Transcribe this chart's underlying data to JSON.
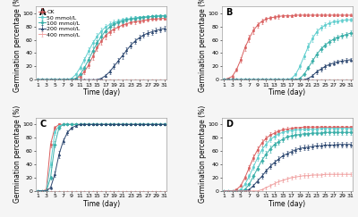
{
  "subplots": [
    "A",
    "B",
    "C",
    "D"
  ],
  "legend_labels": [
    "CK",
    "50 mmol/L",
    "100 mmol/L",
    "200 mmol/L",
    "400 mmol/L"
  ],
  "colors": [
    "#d95f5f",
    "#60cece",
    "#3aafa9",
    "#2c4770",
    "#f0a0a0"
  ],
  "markers": [
    "s",
    "o",
    "D",
    "^",
    "+"
  ],
  "xlabel": "Time (day)",
  "ylabel": "Germination percentage (%)",
  "days": [
    1,
    2,
    3,
    4,
    5,
    6,
    7,
    8,
    9,
    10,
    11,
    12,
    13,
    14,
    15,
    16,
    17,
    18,
    19,
    20,
    21,
    22,
    23,
    24,
    25,
    26,
    27,
    28,
    29,
    30,
    31
  ],
  "A": {
    "CK": [
      0,
      0,
      0,
      0,
      0,
      0,
      0,
      0,
      0,
      2,
      5,
      12,
      22,
      35,
      48,
      58,
      66,
      72,
      76,
      79,
      82,
      84,
      86,
      87,
      88,
      89,
      90,
      91,
      91,
      92,
      92
    ],
    "50": [
      0,
      0,
      0,
      0,
      0,
      0,
      0,
      0,
      2,
      8,
      18,
      30,
      43,
      55,
      65,
      73,
      79,
      83,
      86,
      88,
      90,
      91,
      92,
      93,
      94,
      94,
      95,
      95,
      96,
      96,
      96
    ],
    "100": [
      0,
      0,
      0,
      0,
      0,
      0,
      0,
      0,
      0,
      2,
      8,
      18,
      30,
      43,
      55,
      65,
      73,
      79,
      83,
      86,
      88,
      90,
      91,
      92,
      93,
      94,
      94,
      95,
      95,
      96,
      96
    ],
    "200": [
      0,
      0,
      0,
      0,
      0,
      0,
      0,
      0,
      0,
      0,
      0,
      0,
      0,
      0,
      0,
      2,
      6,
      12,
      20,
      28,
      36,
      44,
      52,
      58,
      63,
      67,
      70,
      72,
      74,
      76,
      77
    ],
    "400": [
      0,
      0,
      0,
      0,
      0,
      0,
      0,
      0,
      0,
      0,
      0,
      0,
      0,
      0,
      0,
      0,
      0,
      0,
      0,
      0,
      0,
      0,
      0,
      0,
      0,
      0,
      0,
      0,
      0,
      0,
      0
    ],
    "CK_err": [
      0,
      0,
      0,
      0,
      0,
      0,
      0,
      0,
      0,
      1,
      2,
      3,
      4,
      5,
      5,
      5,
      5,
      4,
      4,
      4,
      3,
      3,
      3,
      3,
      3,
      3,
      3,
      2,
      2,
      2,
      2
    ],
    "50_err": [
      0,
      0,
      0,
      0,
      0,
      0,
      0,
      0,
      1,
      2,
      3,
      4,
      5,
      5,
      5,
      5,
      4,
      4,
      4,
      3,
      3,
      3,
      3,
      3,
      2,
      2,
      2,
      2,
      2,
      2,
      2
    ],
    "100_err": [
      0,
      0,
      0,
      0,
      0,
      0,
      0,
      0,
      0,
      1,
      2,
      3,
      4,
      5,
      5,
      5,
      5,
      4,
      4,
      4,
      3,
      3,
      3,
      3,
      3,
      2,
      2,
      2,
      2,
      2,
      2
    ],
    "200_err": [
      0,
      0,
      0,
      0,
      0,
      0,
      0,
      0,
      0,
      0,
      0,
      0,
      0,
      0,
      0,
      1,
      2,
      3,
      4,
      4,
      5,
      5,
      5,
      4,
      4,
      4,
      4,
      4,
      4,
      4,
      4
    ],
    "400_err": [
      0,
      0,
      0,
      0,
      0,
      0,
      0,
      0,
      0,
      0,
      0,
      0,
      0,
      0,
      0,
      0,
      0,
      0,
      0,
      0,
      0,
      0,
      0,
      0,
      0,
      0,
      0,
      0,
      0,
      0,
      0
    ]
  },
  "B": {
    "CK": [
      0,
      2,
      5,
      15,
      30,
      48,
      62,
      74,
      82,
      88,
      91,
      93,
      94,
      95,
      96,
      96,
      96,
      97,
      97,
      97,
      97,
      97,
      97,
      97,
      97,
      97,
      97,
      97,
      97,
      97,
      97
    ],
    "50": [
      0,
      0,
      0,
      0,
      0,
      0,
      0,
      0,
      0,
      0,
      0,
      0,
      0,
      0,
      0,
      0,
      2,
      8,
      20,
      35,
      50,
      62,
      72,
      78,
      82,
      85,
      87,
      88,
      89,
      90,
      90
    ],
    "100": [
      0,
      0,
      0,
      0,
      0,
      0,
      0,
      0,
      0,
      0,
      0,
      0,
      0,
      0,
      0,
      0,
      0,
      0,
      2,
      8,
      18,
      28,
      38,
      46,
      52,
      57,
      61,
      64,
      66,
      68,
      70
    ],
    "200": [
      0,
      0,
      0,
      0,
      0,
      0,
      0,
      0,
      0,
      0,
      0,
      0,
      0,
      0,
      0,
      0,
      0,
      0,
      0,
      0,
      2,
      6,
      12,
      16,
      20,
      23,
      25,
      27,
      28,
      29,
      30
    ],
    "400": [
      0,
      0,
      0,
      0,
      0,
      0,
      0,
      0,
      0,
      0,
      0,
      0,
      0,
      0,
      0,
      0,
      0,
      0,
      0,
      0,
      0,
      0,
      0,
      0,
      0,
      0,
      0,
      0,
      0,
      0,
      0
    ],
    "CK_err": [
      0,
      1,
      2,
      3,
      4,
      5,
      5,
      5,
      4,
      4,
      3,
      3,
      3,
      3,
      2,
      2,
      2,
      2,
      2,
      2,
      2,
      2,
      2,
      2,
      2,
      2,
      2,
      2,
      2,
      2,
      2
    ],
    "50_err": [
      0,
      0,
      0,
      0,
      0,
      0,
      0,
      0,
      0,
      0,
      0,
      0,
      0,
      0,
      0,
      0,
      1,
      2,
      3,
      4,
      5,
      5,
      5,
      4,
      4,
      4,
      3,
      3,
      3,
      3,
      3
    ],
    "100_err": [
      0,
      0,
      0,
      0,
      0,
      0,
      0,
      0,
      0,
      0,
      0,
      0,
      0,
      0,
      0,
      0,
      0,
      0,
      1,
      2,
      3,
      4,
      4,
      4,
      4,
      4,
      4,
      4,
      4,
      4,
      4
    ],
    "200_err": [
      0,
      0,
      0,
      0,
      0,
      0,
      0,
      0,
      0,
      0,
      0,
      0,
      0,
      0,
      0,
      0,
      0,
      0,
      0,
      0,
      1,
      2,
      3,
      3,
      3,
      3,
      3,
      3,
      3,
      3,
      3
    ],
    "400_err": [
      0,
      0,
      0,
      0,
      0,
      0,
      0,
      0,
      0,
      0,
      0,
      0,
      0,
      0,
      0,
      0,
      0,
      0,
      0,
      0,
      0,
      0,
      0,
      0,
      0,
      0,
      0,
      0,
      0,
      0,
      0
    ]
  },
  "C": {
    "CK": [
      0,
      0,
      2,
      70,
      95,
      100,
      100,
      100,
      100,
      100,
      100,
      100,
      100,
      100,
      100,
      100,
      100,
      100,
      100,
      100,
      100,
      100,
      100,
      100,
      100,
      100,
      100,
      100,
      100,
      100,
      100
    ],
    "50": [
      0,
      0,
      0,
      40,
      88,
      98,
      100,
      100,
      100,
      100,
      100,
      100,
      100,
      100,
      100,
      100,
      100,
      100,
      100,
      100,
      100,
      100,
      100,
      100,
      100,
      100,
      100,
      100,
      100,
      100,
      100
    ],
    "100": [
      0,
      0,
      0,
      20,
      70,
      95,
      100,
      100,
      100,
      100,
      100,
      100,
      100,
      100,
      100,
      100,
      100,
      100,
      100,
      100,
      100,
      100,
      100,
      100,
      100,
      100,
      100,
      100,
      100,
      100,
      100
    ],
    "200": [
      0,
      0,
      0,
      5,
      25,
      55,
      75,
      88,
      95,
      98,
      100,
      100,
      100,
      100,
      100,
      100,
      100,
      100,
      100,
      100,
      100,
      100,
      100,
      100,
      100,
      100,
      100,
      100,
      100,
      100,
      100
    ],
    "400": [
      0,
      0,
      0,
      0,
      0,
      0,
      0,
      0,
      0,
      0,
      0,
      0,
      0,
      0,
      0,
      0,
      0,
      0,
      0,
      0,
      0,
      0,
      0,
      0,
      0,
      0,
      0,
      0,
      0,
      0,
      0
    ],
    "CK_err": [
      0,
      0,
      2,
      5,
      3,
      2,
      1,
      0,
      0,
      0,
      0,
      0,
      0,
      0,
      0,
      0,
      0,
      0,
      0,
      0,
      0,
      0,
      0,
      0,
      0,
      0,
      0,
      0,
      0,
      0,
      0
    ],
    "50_err": [
      0,
      0,
      0,
      4,
      4,
      2,
      1,
      0,
      0,
      0,
      0,
      0,
      0,
      0,
      0,
      0,
      0,
      0,
      0,
      0,
      0,
      0,
      0,
      0,
      0,
      0,
      0,
      0,
      0,
      0,
      0
    ],
    "100_err": [
      0,
      0,
      0,
      3,
      5,
      3,
      1,
      0,
      0,
      0,
      0,
      0,
      0,
      0,
      0,
      0,
      0,
      0,
      0,
      0,
      0,
      0,
      0,
      0,
      0,
      0,
      0,
      0,
      0,
      0,
      0
    ],
    "200_err": [
      0,
      0,
      0,
      2,
      4,
      5,
      4,
      3,
      2,
      2,
      1,
      1,
      1,
      1,
      1,
      1,
      1,
      1,
      1,
      1,
      1,
      1,
      1,
      1,
      1,
      1,
      1,
      1,
      1,
      1,
      1
    ],
    "400_err": [
      0,
      0,
      0,
      0,
      0,
      0,
      0,
      0,
      0,
      0,
      0,
      0,
      0,
      0,
      0,
      0,
      0,
      0,
      0,
      0,
      0,
      0,
      0,
      0,
      0,
      0,
      0,
      0,
      0,
      0,
      0
    ]
  },
  "D": {
    "CK": [
      0,
      0,
      0,
      2,
      8,
      20,
      35,
      50,
      62,
      72,
      79,
      84,
      87,
      90,
      92,
      93,
      94,
      95,
      95,
      96,
      96,
      96,
      96,
      96,
      96,
      96,
      96,
      96,
      96,
      96,
      96
    ],
    "50": [
      0,
      0,
      0,
      0,
      2,
      10,
      22,
      36,
      50,
      62,
      70,
      77,
      82,
      86,
      88,
      90,
      91,
      92,
      92,
      93,
      93,
      93,
      93,
      94,
      94,
      94,
      94,
      94,
      94,
      94,
      94
    ],
    "100": [
      0,
      0,
      0,
      0,
      0,
      2,
      10,
      22,
      34,
      46,
      55,
      63,
      70,
      74,
      78,
      81,
      83,
      84,
      85,
      86,
      86,
      87,
      87,
      87,
      88,
      88,
      88,
      88,
      88,
      88,
      88
    ],
    "200": [
      0,
      0,
      0,
      0,
      0,
      0,
      2,
      8,
      15,
      22,
      30,
      37,
      43,
      48,
      53,
      56,
      59,
      62,
      64,
      65,
      66,
      67,
      68,
      68,
      69,
      69,
      69,
      70,
      70,
      70,
      70
    ],
    "400": [
      0,
      0,
      0,
      0,
      0,
      0,
      0,
      0,
      0,
      2,
      5,
      8,
      11,
      14,
      16,
      18,
      20,
      21,
      22,
      23,
      23,
      24,
      24,
      24,
      25,
      25,
      25,
      25,
      25,
      25,
      25
    ],
    "CK_err": [
      0,
      0,
      0,
      1,
      2,
      3,
      4,
      5,
      5,
      5,
      4,
      4,
      4,
      3,
      3,
      3,
      3,
      2,
      2,
      2,
      2,
      2,
      2,
      2,
      2,
      2,
      2,
      2,
      2,
      2,
      2
    ],
    "50_err": [
      0,
      0,
      0,
      0,
      1,
      2,
      3,
      4,
      5,
      5,
      5,
      4,
      4,
      3,
      3,
      3,
      3,
      2,
      2,
      2,
      2,
      2,
      2,
      2,
      2,
      2,
      2,
      2,
      2,
      2,
      2
    ],
    "100_err": [
      0,
      0,
      0,
      0,
      0,
      1,
      2,
      3,
      4,
      5,
      5,
      5,
      4,
      4,
      4,
      4,
      4,
      4,
      3,
      3,
      3,
      3,
      3,
      3,
      3,
      3,
      3,
      3,
      3,
      3,
      3
    ],
    "200_err": [
      0,
      0,
      0,
      0,
      0,
      0,
      1,
      2,
      3,
      4,
      4,
      4,
      4,
      4,
      4,
      4,
      4,
      4,
      4,
      4,
      4,
      4,
      4,
      4,
      4,
      4,
      4,
      4,
      4,
      4,
      4
    ],
    "400_err": [
      0,
      0,
      0,
      0,
      0,
      0,
      0,
      0,
      0,
      1,
      2,
      3,
      3,
      3,
      3,
      3,
      3,
      3,
      3,
      3,
      3,
      3,
      3,
      3,
      3,
      3,
      3,
      3,
      3,
      3,
      3
    ]
  },
  "series_keys": [
    "CK",
    "50",
    "100",
    "200",
    "400"
  ],
  "ylim": [
    0,
    110
  ],
  "xlim": [
    0.5,
    31.5
  ],
  "yticks": [
    0,
    20,
    40,
    60,
    80,
    100
  ],
  "xticks": [
    1,
    3,
    5,
    7,
    9,
    11,
    13,
    15,
    17,
    19,
    21,
    23,
    25,
    27,
    29,
    31
  ],
  "bg_color": "#f5f5f5",
  "plot_bg": "#ffffff",
  "subplot_label_fontsize": 7,
  "tick_fontsize": 4.5,
  "legend_fontsize": 4.5,
  "axis_label_fontsize": 5.5,
  "markersize": 1.8,
  "linewidth": 0.7,
  "capsize": 1.0,
  "elinewidth": 0.45
}
